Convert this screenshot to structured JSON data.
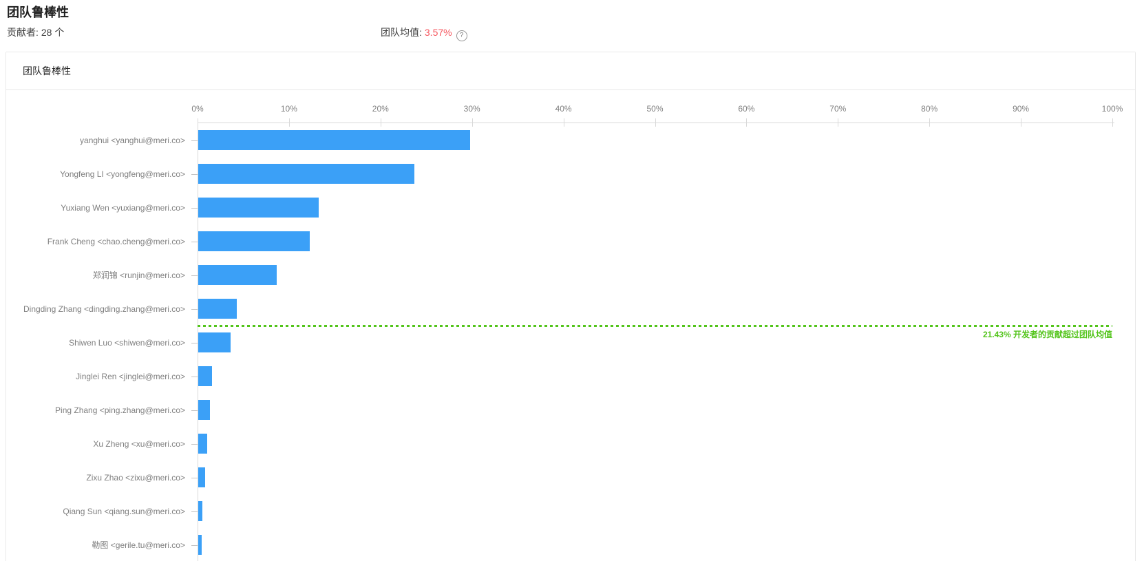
{
  "page": {
    "title": "团队鲁棒性",
    "stats": {
      "contributors_label": "贡献者:",
      "contributors_value": "28 个",
      "average_label": "团队均值:",
      "average_value": "3.57%",
      "help_glyph": "?",
      "help_icon": "question-circle-icon"
    }
  },
  "card": {
    "title": "团队鲁棒性"
  },
  "colors": {
    "bar": "#3ba0f7",
    "average_line": "#52c41a",
    "average_text": "#52c41a",
    "average_value_text": "#f5575f",
    "axis": "#d9d9d9",
    "axis_label": "#7f7f7f"
  },
  "chart_data": {
    "type": "bar",
    "orientation": "horizontal",
    "title": "团队鲁棒性",
    "xlabel": "",
    "ylabel": "",
    "xlim": [
      0,
      100
    ],
    "grid": false,
    "legend": false,
    "axis_position": "top",
    "x_tick_labels": [
      "0%",
      "10%",
      "20%",
      "30%",
      "40%",
      "50%",
      "60%",
      "70%",
      "80%",
      "90%",
      "100%"
    ],
    "categories": [
      "yanghui <yanghui@meri.co>",
      "Yongfeng LI <yongfeng@meri.co>",
      "Yuxiang Wen <yuxiang@meri.co>",
      "Frank Cheng <chao.cheng@meri.co>",
      "郑润锦 <runjin@meri.co>",
      "Dingding Zhang <dingding.zhang@meri.co>",
      "Shiwen Luo <shiwen@meri.co>",
      "Jinglei Ren <jinglei@meri.co>",
      "Ping Zhang <ping.zhang@meri.co>",
      "Xu Zheng <xu@meri.co>",
      "Zixu Zhao <zixu@meri.co>",
      "Qiang Sun <qiang.sun@meri.co>",
      "勒图 <gerile.tu@meri.co>"
    ],
    "values": [
      29.7,
      23.6,
      13.2,
      12.2,
      8.6,
      4.2,
      3.5,
      1.5,
      1.3,
      1.0,
      0.75,
      0.45,
      0.4
    ],
    "annotation": {
      "label": "21.43% 开发者的贡献超过团队均值",
      "line_after_category_index": 5,
      "line_style": "dotted"
    }
  }
}
